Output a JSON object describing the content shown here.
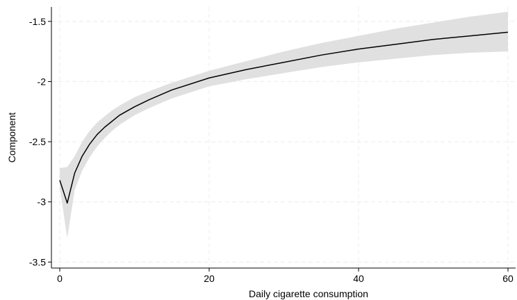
{
  "chart_data": {
    "type": "line",
    "title": "",
    "xlabel": "Daily cigarette consumption",
    "ylabel": "Component",
    "xlim": [
      0,
      60
    ],
    "ylim": [
      -3.55,
      -1.38
    ],
    "xticks": [
      0,
      20,
      40,
      60
    ],
    "yticks": [
      -3.5,
      -3,
      -2.5,
      -2,
      -1.5
    ],
    "xtick_labels": [
      "0",
      "20",
      "40",
      "60"
    ],
    "ytick_labels": [
      "-3.5",
      "-3",
      "-2.5",
      "-2",
      "-1.5"
    ],
    "grid": true,
    "legend": "none",
    "colors": {
      "line": "#000000",
      "band": "#e0e0e0",
      "grid": "#ececec"
    },
    "x": [
      0,
      1,
      2,
      3,
      4,
      5,
      6,
      7,
      8,
      10,
      12,
      15,
      20,
      25,
      30,
      35,
      40,
      45,
      50,
      55,
      60
    ],
    "series": [
      {
        "values": [
          -2.82,
          -3.01,
          -2.76,
          -2.62,
          -2.52,
          -2.44,
          -2.38,
          -2.33,
          -2.28,
          -2.21,
          -2.15,
          -2.07,
          -1.97,
          -1.9,
          -1.84,
          -1.78,
          -1.73,
          -1.69,
          -1.65,
          -1.62,
          -1.59
        ],
        "ci_lower": [
          -2.88,
          -3.3,
          -2.9,
          -2.74,
          -2.63,
          -2.54,
          -2.47,
          -2.41,
          -2.36,
          -2.28,
          -2.22,
          -2.14,
          -2.04,
          -1.98,
          -1.93,
          -1.88,
          -1.84,
          -1.81,
          -1.78,
          -1.76,
          -1.75
        ],
        "ci_upper": [
          -2.72,
          -2.71,
          -2.62,
          -2.5,
          -2.41,
          -2.34,
          -2.29,
          -2.24,
          -2.2,
          -2.13,
          -2.08,
          -2.01,
          -1.91,
          -1.83,
          -1.75,
          -1.68,
          -1.62,
          -1.56,
          -1.51,
          -1.46,
          -1.42
        ]
      }
    ]
  }
}
